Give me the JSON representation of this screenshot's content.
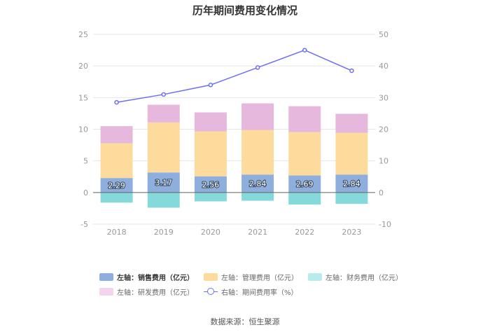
{
  "chart_data": {
    "type": "bar",
    "title": "历年期间费用变化情况",
    "categories": [
      "2018",
      "2019",
      "2020",
      "2021",
      "2022",
      "2023"
    ],
    "stacked": true,
    "series": [
      {
        "name": "左轴：销售费用（亿元）",
        "axis": "left",
        "color": "#8eaedd",
        "values": [
          2.29,
          3.17,
          2.56,
          2.84,
          2.69,
          2.84
        ],
        "show_labels": true
      },
      {
        "name": "左轴：管理费用（亿元）",
        "axis": "left",
        "color": "#fddb9c",
        "values": [
          5.5,
          7.9,
          7.1,
          7.05,
          6.85,
          6.6
        ]
      },
      {
        "name": "左轴：财务费用（亿元）",
        "axis": "left",
        "color": "#86d9d9",
        "values": [
          -1.6,
          -2.4,
          -1.4,
          -1.3,
          -1.9,
          -1.8
        ]
      },
      {
        "name": "左轴：研发费用（亿元）",
        "axis": "left",
        "color": "#e6b8dd",
        "values": [
          2.7,
          2.8,
          3.0,
          4.2,
          4.1,
          3.0
        ]
      },
      {
        "name": "右轴：期间费用率（%）",
        "axis": "right",
        "type": "line",
        "color": "#6c6ff2",
        "values": [
          28.5,
          31.0,
          34.0,
          39.5,
          45.0,
          38.5
        ]
      }
    ],
    "left_axis": {
      "min": -5,
      "max": 25,
      "ticks": [
        -5,
        0,
        5,
        10,
        15,
        20,
        25
      ]
    },
    "right_axis": {
      "min": -10,
      "max": 50,
      "ticks": [
        -10,
        0,
        10,
        20,
        30,
        40,
        50
      ]
    },
    "grid": true,
    "legend_position": "bottom"
  },
  "legend": {
    "items": [
      {
        "label": "左轴：销售费用（亿元）",
        "color": "#8eaedd"
      },
      {
        "label": "左轴：管理费用（亿元）",
        "color": "#fddb9c"
      },
      {
        "label": "左轴：财务费用（亿元）",
        "color": "#b8ecec"
      },
      {
        "label": "左轴：研发费用（亿元）",
        "color": "#f2d4ec"
      },
      {
        "label": "右轴：期间费用率（%）",
        "color": "#6c6ff2"
      }
    ]
  },
  "source": "数据来源：恒生聚源"
}
